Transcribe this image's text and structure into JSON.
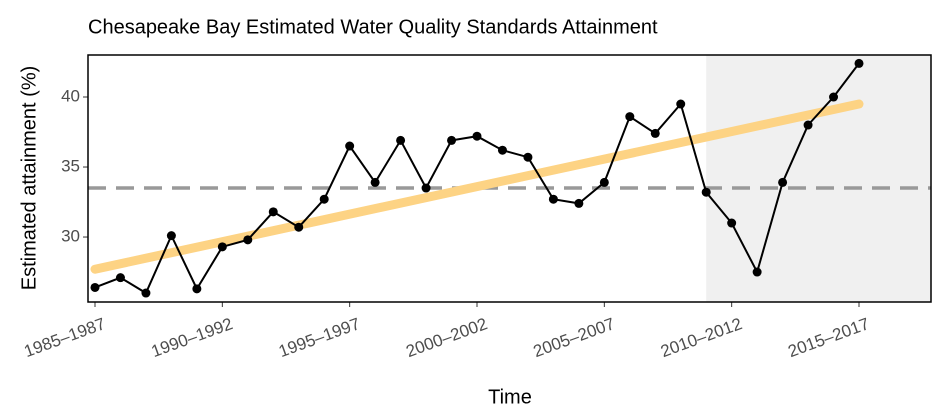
{
  "chart_data": {
    "type": "line",
    "title": "Chesapeake Bay Estimated Water Quality Standards Attainment",
    "x_label": "Time",
    "y_label": "Estimated attainment (%)",
    "categories": [
      "1985–1987",
      null,
      null,
      null,
      null,
      "1990–1992",
      null,
      null,
      null,
      null,
      "1995–1997",
      null,
      null,
      null,
      null,
      "2000–2002",
      null,
      null,
      null,
      null,
      "2005–2007",
      null,
      null,
      null,
      null,
      "2010–2012",
      null,
      null,
      null,
      null,
      "2015–2017"
    ],
    "series": [
      {
        "color": "#000000",
        "values": [
          26.4,
          27.1,
          26.0,
          30.1,
          26.3,
          29.3,
          29.8,
          31.8,
          30.7,
          32.7,
          36.5,
          33.9,
          36.9,
          33.5,
          36.9,
          37.2,
          36.2,
          35.7,
          32.7,
          32.4,
          33.9,
          38.6,
          37.4,
          39.5,
          33.2,
          31.0,
          27.5,
          33.9,
          38.0,
          40.0,
          42.4
        ]
      }
    ],
    "trend": {
      "color": "#fdd384",
      "values": [
        27.7,
        39.5
      ]
    },
    "reference_line": {
      "color": "#999999",
      "value": 33.5
    },
    "shaded_from_index": 24,
    "ylim": [
      25.36,
      43.0
    ],
    "yticks": [
      30,
      35,
      40
    ]
  }
}
